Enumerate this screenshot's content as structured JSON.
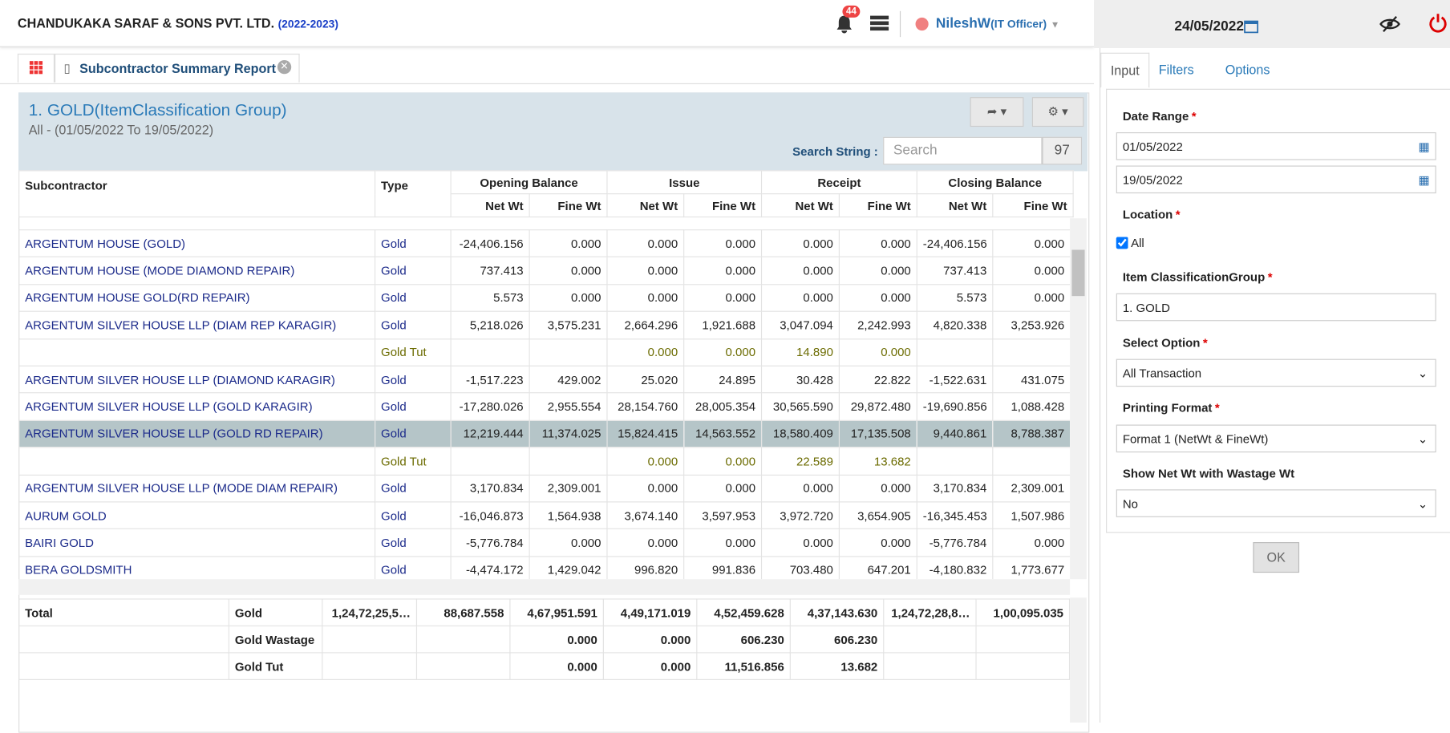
{
  "header": {
    "company": "CHANDUKAKA SARAF & SONS PVT. LTD.",
    "year": "(2022-2023)",
    "notifications": "44",
    "user": "NileshW",
    "role": "(IT Officer)",
    "date": "24/05/2022"
  },
  "tab": {
    "title": "Subcontractor Summary Report"
  },
  "report": {
    "title": "1. GOLD(ItemClassification Group)",
    "subtitle": "All - (01/05/2022 To 19/05/2022)",
    "search_label": "Search String :",
    "search_placeholder": "Search",
    "count": "97"
  },
  "table": {
    "columns": [
      "Subcontractor",
      "Type"
    ],
    "groups": [
      "Opening Balance",
      "Issue",
      "Receipt",
      "Closing Balance"
    ],
    "subcolumns": [
      "Net Wt",
      "Fine Wt"
    ],
    "rows": [
      [
        "ARGENTUM HOUSE (GOLD)",
        "Gold",
        "-24,406.156",
        "0.000",
        "0.000",
        "0.000",
        "0.000",
        "0.000",
        "-24,406.156",
        "0.000"
      ],
      [
        "ARGENTUM HOUSE (MODE DIAMOND REPAIR)",
        "Gold",
        "737.413",
        "0.000",
        "0.000",
        "0.000",
        "0.000",
        "0.000",
        "737.413",
        "0.000"
      ],
      [
        "ARGENTUM HOUSE GOLD(RD REPAIR)",
        "Gold",
        "5.573",
        "0.000",
        "0.000",
        "0.000",
        "0.000",
        "0.000",
        "5.573",
        "0.000"
      ],
      [
        "ARGENTUM SILVER HOUSE LLP (DIAM REP KARAGIR)",
        "Gold",
        "5,218.026",
        "3,575.231",
        "2,664.296",
        "1,921.688",
        "3,047.094",
        "2,242.993",
        "4,820.338",
        "3,253.926"
      ],
      [
        null,
        "Gold Tut",
        null,
        null,
        "0.000",
        "0.000",
        "14.890",
        "0.000",
        null,
        null
      ],
      [
        "ARGENTUM SILVER HOUSE LLP (DIAMOND KARAGIR)",
        "Gold",
        "-1,517.223",
        "429.002",
        "25.020",
        "24.895",
        "30.428",
        "22.822",
        "-1,522.631",
        "431.075"
      ],
      [
        "ARGENTUM SILVER HOUSE LLP (GOLD KARAGIR)",
        "Gold",
        "-17,280.026",
        "2,955.554",
        "28,154.760",
        "28,005.354",
        "30,565.590",
        "29,872.480",
        "-19,690.856",
        "1,088.428"
      ],
      [
        "ARGENTUM SILVER HOUSE LLP (GOLD RD REPAIR)",
        "Gold",
        "12,219.444",
        "11,374.025",
        "15,824.415",
        "14,563.552",
        "18,580.409",
        "17,135.508",
        "9,440.861",
        "8,788.387"
      ],
      [
        null,
        "Gold Tut",
        null,
        null,
        "0.000",
        "0.000",
        "22.589",
        "13.682",
        null,
        null
      ],
      [
        "ARGENTUM SILVER HOUSE LLP (MODE DIAM REPAIR)",
        "Gold",
        "3,170.834",
        "2,309.001",
        "0.000",
        "0.000",
        "0.000",
        "0.000",
        "3,170.834",
        "2,309.001"
      ],
      [
        "AURUM GOLD",
        "Gold",
        "-16,046.873",
        "1,564.938",
        "3,674.140",
        "3,597.953",
        "3,972.720",
        "3,654.905",
        "-16,345.453",
        "1,507.986"
      ],
      [
        "BAIRI GOLD",
        "Gold",
        "-5,776.784",
        "0.000",
        "0.000",
        "0.000",
        "0.000",
        "0.000",
        "-5,776.784",
        "0.000"
      ],
      [
        "BERA GOLDSMITH",
        "Gold",
        "-4,474.172",
        "1,429.042",
        "996.820",
        "991.836",
        "703.480",
        "647.201",
        "-4,180.832",
        "1,773.677"
      ]
    ]
  },
  "totals": {
    "rows": [
      [
        "Total",
        "Gold",
        "1,24,72,25,5…",
        "88,687.558",
        "4,67,951.591",
        "4,49,171.019",
        "4,52,459.628",
        "4,37,143.630",
        "1,24,72,28,8…",
        "1,00,095.035"
      ],
      [
        null,
        "Gold Wastage",
        null,
        null,
        "0.000",
        "0.000",
        "606.230",
        "606.230",
        null,
        null
      ],
      [
        null,
        "Gold Tut",
        null,
        null,
        "0.000",
        "0.000",
        "11,516.856",
        "13.682",
        null,
        null
      ]
    ]
  },
  "panel": {
    "tabs": [
      "Input",
      "Filters",
      "Options"
    ],
    "required_mark": "*",
    "date_range": {
      "label": "Date Range",
      "from": "01/05/2022",
      "to": "19/05/2022"
    },
    "location": {
      "label": "Location",
      "option": "All"
    },
    "item_group": {
      "label": "Item ClassificationGroup",
      "value": "1. GOLD"
    },
    "select_option": {
      "label": "Select Option",
      "value": "All Transaction"
    },
    "printing_format": {
      "label": "Printing Format",
      "value": "Format 1 (NetWt & FineWt)"
    },
    "show_net": {
      "label": "Show Net Wt with Wastage Wt",
      "value": "No"
    },
    "ok": "OK"
  }
}
